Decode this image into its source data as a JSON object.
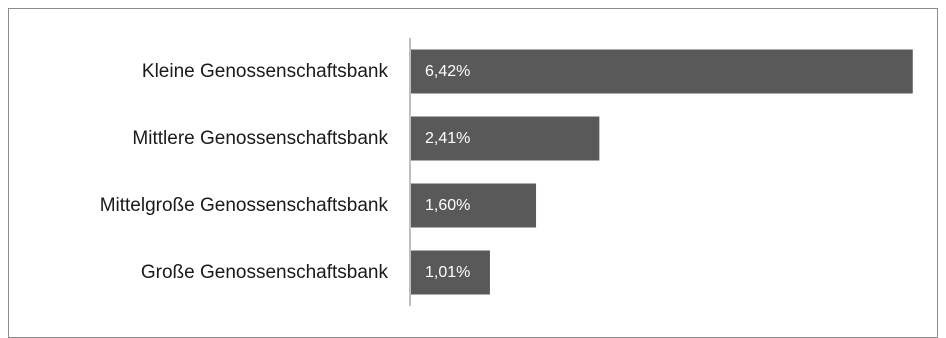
{
  "chart_data": {
    "type": "bar",
    "orientation": "horizontal",
    "categories": [
      "Kleine Genossenschaftsbank",
      "Mittlere Genossenschaftsbank",
      "Mittelgroße Genossenschaftsbank",
      "Große Genossenschaftsbank"
    ],
    "values": [
      6.42,
      2.41,
      1.6,
      1.01
    ],
    "value_labels": [
      "6,42%",
      "2,41%",
      "1,60%",
      "1,01%"
    ],
    "xlim": [
      0,
      6.5
    ],
    "grid": false,
    "legend": "none",
    "colors": {
      "bar": "#595959",
      "axis": "#bfbfbf",
      "border": "#8c8c8c",
      "label_text": "#1a1a1a",
      "value_text": "#ffffff"
    }
  }
}
